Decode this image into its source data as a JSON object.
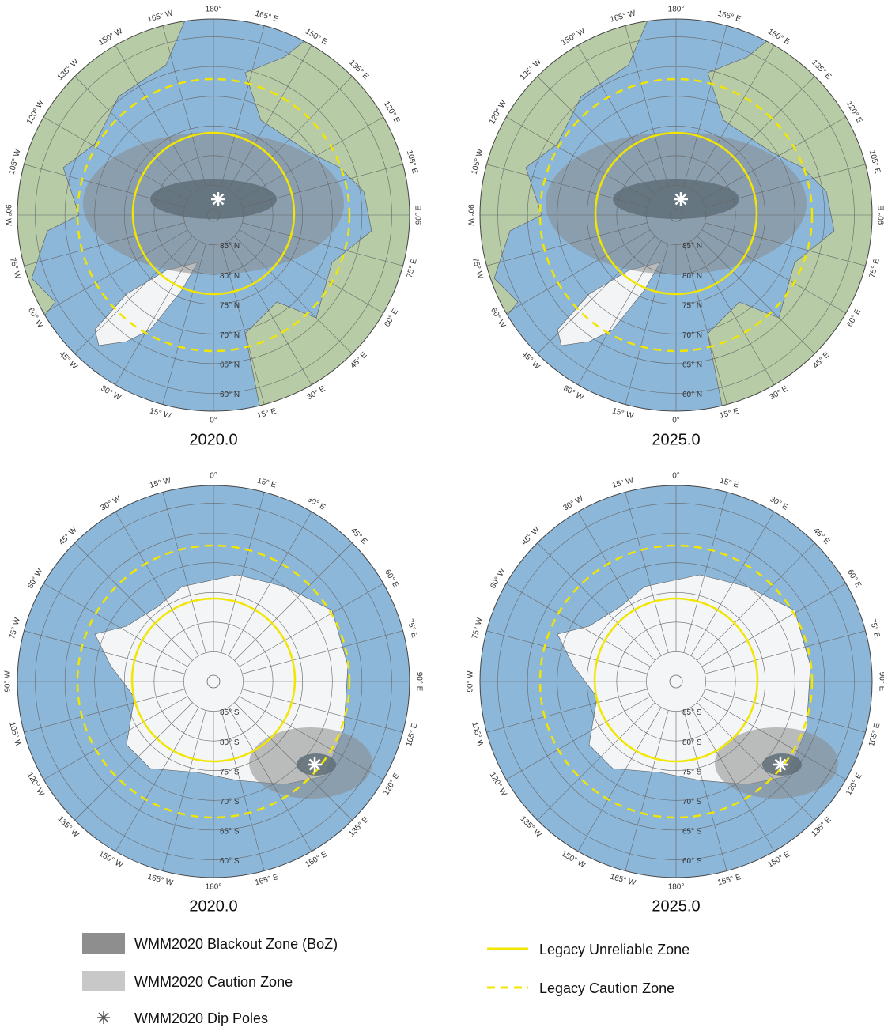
{
  "panels": [
    {
      "caption": "2020.0",
      "hemisphere": "north",
      "longitude_labels": [
        "0°",
        "15° E",
        "30° E",
        "45° E",
        "60° E",
        "75° E",
        "90° E",
        "105° E",
        "120° E",
        "135° E",
        "150° E",
        "165° E",
        "180°",
        "165° W",
        "150° W",
        "135° W",
        "120° W",
        "105° W",
        "90° W",
        "75° W",
        "60° W",
        "45° W",
        "30° W",
        "15° W"
      ],
      "latitude_labels": [
        "85° N",
        "80° N",
        "75° N",
        "70° N",
        "65° N",
        "60° N"
      ]
    },
    {
      "caption": "2025.0",
      "hemisphere": "north",
      "longitude_labels": [
        "0°",
        "15° E",
        "30° E",
        "45° E",
        "60° E",
        "75° E",
        "90° E",
        "105° E",
        "120° E",
        "135° E",
        "150° E",
        "165° E",
        "180°",
        "165° W",
        "150° W",
        "135° W",
        "120° W",
        "105° W",
        "90° W",
        "75° W",
        "60° W",
        "45° W",
        "30° W",
        "15° W"
      ],
      "latitude_labels": [
        "85° N",
        "80° N",
        "75° N",
        "70° N",
        "65° N",
        "60° N"
      ]
    },
    {
      "caption": "2020.0",
      "hemisphere": "south",
      "longitude_labels": [
        "0°",
        "15° E",
        "30° E",
        "45° E",
        "60° E",
        "75° E",
        "90° E",
        "105° E",
        "120° E",
        "135° E",
        "150° E",
        "165° E",
        "180°",
        "165° W",
        "150° W",
        "135° W",
        "120° W",
        "105° W",
        "90° W",
        "75° W",
        "60° W",
        "45° W",
        "30° W",
        "15° W"
      ],
      "latitude_labels": [
        "85° S",
        "80° S",
        "75° S",
        "70° S",
        "65° S",
        "60° S"
      ]
    },
    {
      "caption": "2025.0",
      "hemisphere": "south",
      "longitude_labels": [
        "0°",
        "15° E",
        "30° E",
        "45° E",
        "60° E",
        "75° E",
        "90° E",
        "105° E",
        "120° E",
        "135° E",
        "150° E",
        "165° E",
        "180°",
        "165° W",
        "150° W",
        "135° W",
        "120° W",
        "105° W",
        "90° W",
        "75° W",
        "60° W",
        "45° W",
        "30° W",
        "15° W"
      ],
      "latitude_labels": [
        "85° S",
        "80° S",
        "75° S",
        "70° S",
        "65° S",
        "60° S"
      ]
    }
  ],
  "legend": [
    {
      "label": "WMM2020 Blackout Zone (BoZ)"
    },
    {
      "label": "WMM2020 Caution Zone"
    },
    {
      "label": "WMM2020 Dip Poles"
    },
    {
      "label": "Legacy Unreliable Zone"
    },
    {
      "label": "Legacy Caution Zone"
    }
  ]
}
